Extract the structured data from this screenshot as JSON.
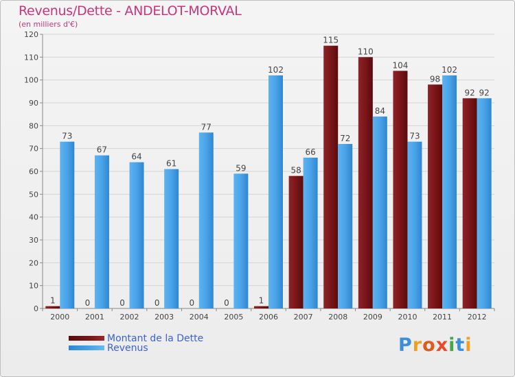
{
  "header": {
    "title": "Revenus/Dette - ANDELOT-MORVAL",
    "subtitle": "(en milliers d'€)"
  },
  "colors": {
    "dette": "#7a1518",
    "revenus": "#4aa3e8",
    "title": "#c8357a",
    "legend_text": "#3c61d6",
    "grid": "#d4d4d4"
  },
  "chart_data": {
    "type": "bar",
    "title": "Revenus/Dette - ANDELOT-MORVAL",
    "subtitle": "(en milliers d'€)",
    "categories": [
      "2000",
      "2001",
      "2002",
      "2003",
      "2004",
      "2005",
      "2006",
      "2007",
      "2008",
      "2009",
      "2010",
      "2011",
      "2012"
    ],
    "series": [
      {
        "name": "Montant de la Dette",
        "values": [
          1,
          0,
          0,
          0,
          0,
          0,
          1,
          58,
          115,
          110,
          104,
          98,
          92
        ]
      },
      {
        "name": "Revenus",
        "values": [
          73,
          67,
          64,
          61,
          77,
          59,
          102,
          66,
          72,
          84,
          73,
          102,
          92
        ]
      }
    ],
    "ylim": [
      0,
      120
    ],
    "yticks": [
      0,
      10,
      20,
      30,
      40,
      50,
      60,
      70,
      80,
      90,
      100,
      110,
      120
    ],
    "grid": true,
    "legend_position": "bottom-left"
  },
  "legend": {
    "items": [
      {
        "label": "Montant de la Dette",
        "color": "#7a1518"
      },
      {
        "label": "Revenus",
        "color": "#4aa3e8"
      }
    ]
  },
  "logo": {
    "letters": [
      "P",
      "r",
      "o",
      "x",
      "i",
      "t",
      "i"
    ],
    "colors": [
      "#3a8fd8",
      "#f0a020",
      "#e05a1e",
      "#e84a2a",
      "#46a64a",
      "#3a8fd8",
      "#f0a020"
    ]
  }
}
